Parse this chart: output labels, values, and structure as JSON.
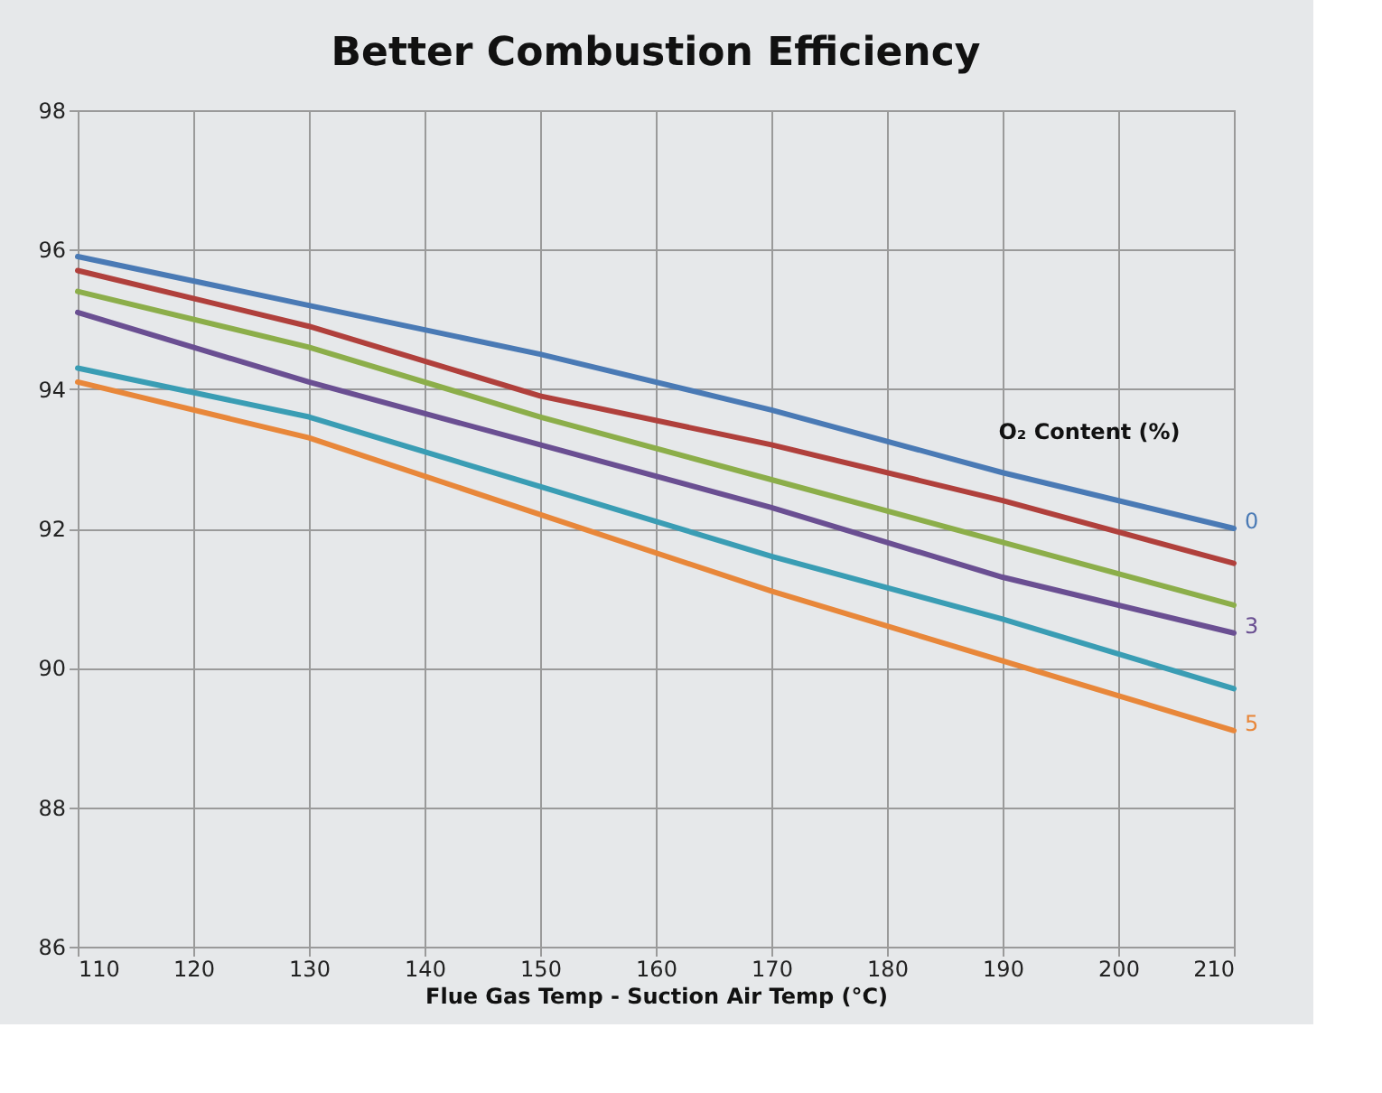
{
  "chart_data": {
    "type": "line",
    "title": "Better Combustion Efficiency",
    "xlabel": "Flue Gas Temp - Suction Air Temp (°C)",
    "x": [
      110,
      130,
      150,
      170,
      190,
      210
    ],
    "series": [
      {
        "name": "0",
        "color": "#4a7ab5",
        "values": [
          95.9,
          95.2,
          94.5,
          93.7,
          92.8,
          92.0
        ]
      },
      {
        "color": "#b0403c",
        "values": [
          95.7,
          94.9,
          93.9,
          93.2,
          92.4,
          91.5
        ]
      },
      {
        "color": "#8cae4a",
        "values": [
          95.4,
          94.6,
          93.6,
          92.7,
          91.8,
          90.9
        ]
      },
      {
        "name": "3",
        "color": "#6a4f92",
        "values": [
          95.1,
          94.1,
          93.2,
          92.3,
          91.3,
          90.5
        ]
      },
      {
        "color": "#3a9db4",
        "values": [
          94.3,
          93.6,
          92.6,
          91.6,
          90.7,
          89.7
        ]
      },
      {
        "name": "5",
        "color": "#e8873a",
        "values": [
          94.1,
          93.3,
          92.2,
          91.1,
          90.1,
          89.1
        ]
      }
    ],
    "annotations": [
      "O₂ Content (%)"
    ],
    "xlim": [
      110,
      210
    ],
    "xticks": [
      110,
      120,
      130,
      140,
      150,
      160,
      170,
      180,
      190,
      200,
      210
    ],
    "ylim": [
      86,
      98
    ],
    "yticks": [
      86,
      88,
      90,
      92,
      94,
      96,
      98
    ],
    "grid": true,
    "legend": false,
    "marker": "none",
    "line_style": "solid"
  }
}
